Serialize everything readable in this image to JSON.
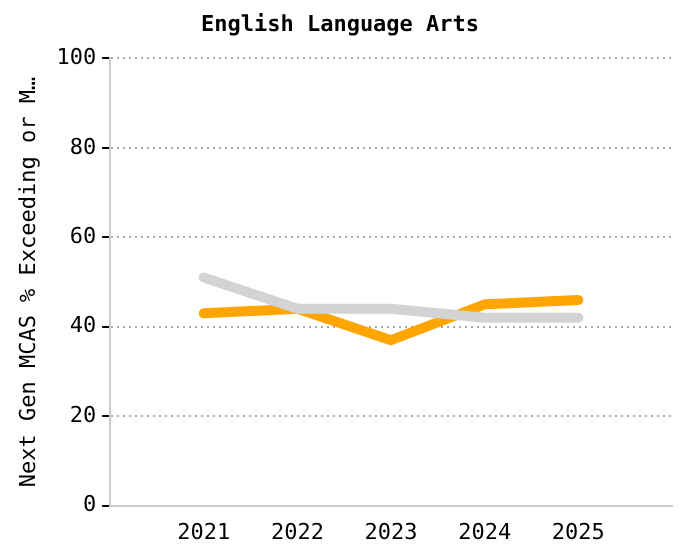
{
  "chart_data": {
    "type": "line",
    "title": "English Language Arts",
    "ylabel": "Next Gen MCAS % Exceeding or M…",
    "categories": [
      "2021",
      "2022",
      "2023",
      "2024",
      "2025"
    ],
    "series": [
      {
        "color": "#d3d3d3",
        "values": [
          51,
          44,
          44,
          42,
          42
        ]
      },
      {
        "color": "#ffa500",
        "values": [
          43,
          44,
          37,
          45,
          46
        ]
      }
    ],
    "ylim": [
      0,
      100
    ],
    "yticks": [
      0,
      20,
      40,
      60,
      80,
      100
    ],
    "grid": "y",
    "legend": false,
    "marker": "none",
    "line_style": "solid"
  }
}
